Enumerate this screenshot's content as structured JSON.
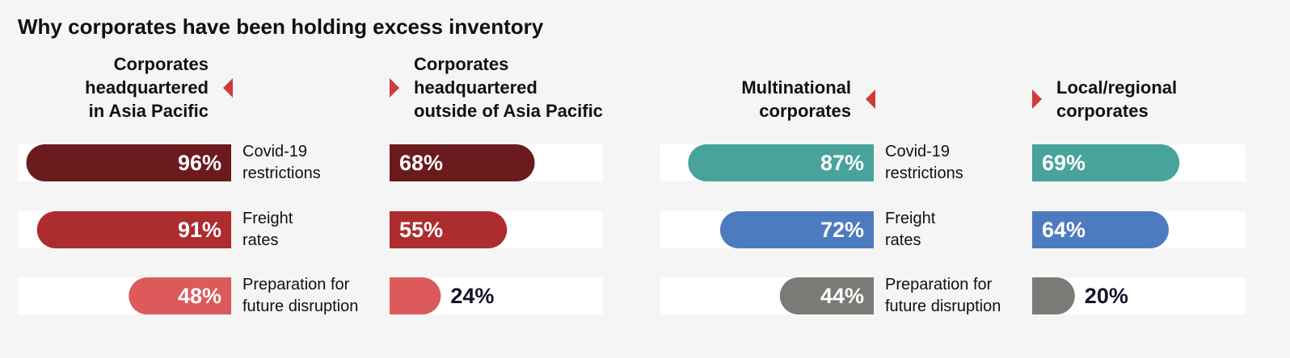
{
  "title": "Why corporates have been holding excess inventory",
  "chart_data": [
    {
      "type": "butterfly-bar",
      "categories": [
        "Covid-19\nrestrictions",
        "Freight\nrates",
        "Preparation for\nfuture disruption"
      ],
      "colors": [
        "#6b1a1e",
        "#ad2d2e",
        "#dc5a5a"
      ],
      "xlim": [
        0,
        100
      ],
      "series": [
        {
          "name": "Corporates\nheadquartered\nin Asia Pacific",
          "values": [
            96,
            91,
            48
          ],
          "value_labels": [
            "96%",
            "91%",
            "48%"
          ]
        },
        {
          "name": "Corporates\nheadquartered\noutside of Asia Pacific",
          "values": [
            68,
            55,
            24
          ],
          "value_labels": [
            "68%",
            "55%",
            "24%"
          ]
        }
      ]
    },
    {
      "type": "butterfly-bar",
      "categories": [
        "Covid-19\nrestrictions",
        "Freight\nrates",
        "Preparation for\nfuture disruption"
      ],
      "colors": [
        "#48a39a",
        "#4d7bbf",
        "#7b7a76"
      ],
      "xlim": [
        0,
        100
      ],
      "series": [
        {
          "name": "Multinational\ncorporates",
          "values": [
            87,
            72,
            44
          ],
          "value_labels": [
            "87%",
            "72%",
            "44%"
          ]
        },
        {
          "name": "Local/regional\ncorporates",
          "values": [
            69,
            64,
            20
          ],
          "value_labels": [
            "69%",
            "64%",
            "20%"
          ]
        }
      ]
    }
  ]
}
